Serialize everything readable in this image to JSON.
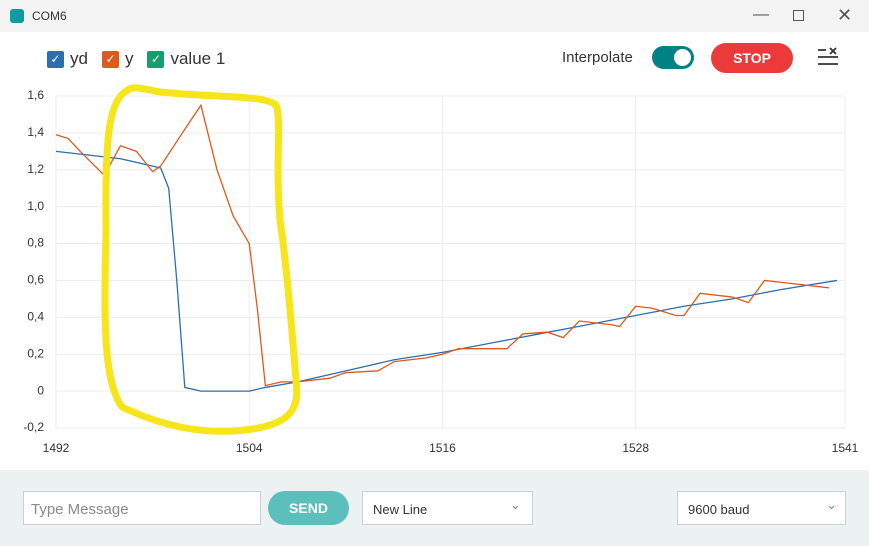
{
  "window": {
    "title": "COM6"
  },
  "toolbar": {
    "interpolate": "Interpolate",
    "stop": "STOP"
  },
  "footer": {
    "message_placeholder": "Type Message",
    "send": "SEND",
    "line_ending": "New Line",
    "baud": "9600 baud"
  },
  "chart_data": {
    "type": "line",
    "xlim": [
      1492,
      1541
    ],
    "xticks": [
      1492,
      1504,
      1516,
      1528,
      1541
    ],
    "ylim": [
      -0.2,
      1.6
    ],
    "yticks": [
      {
        "value": -0.2,
        "label": "-0,2"
      },
      0,
      {
        "value": 0.2,
        "label": "0,2"
      },
      {
        "value": 0.4,
        "label": "0,4"
      },
      {
        "value": 0.6,
        "label": "0,6"
      },
      {
        "value": 0.8,
        "label": "0,8"
      },
      {
        "value": 1.0,
        "label": "1,0"
      },
      {
        "value": 1.2,
        "label": "1,2"
      },
      {
        "value": 1.4,
        "label": "1,4"
      },
      {
        "value": 1.6,
        "label": "1,6"
      }
    ],
    "grid": true,
    "series": [
      {
        "name": "yd",
        "color": "#2a6fb0",
        "x": [
          1492,
          1494,
          1496,
          1497,
          1498,
          1498.5,
          1499,
          1499.5,
          1500,
          1501,
          1504,
          1505,
          1507,
          1510,
          1513,
          1516,
          1519,
          1522,
          1525,
          1528,
          1531,
          1534,
          1537,
          1540.5
        ],
        "values": [
          1.3,
          1.28,
          1.26,
          1.24,
          1.22,
          1.21,
          1.1,
          0.6,
          0.02,
          0,
          0,
          0.02,
          0.05,
          0.11,
          0.17,
          0.21,
          0.26,
          0.31,
          0.36,
          0.41,
          0.46,
          0.5,
          0.55,
          0.6
        ]
      },
      {
        "name": "y",
        "color": "#e0581c",
        "x": [
          1492,
          1492.75,
          1493.5,
          1495,
          1496,
          1497,
          1498,
          1498.5,
          1500,
          1501,
          1502,
          1503,
          1504,
          1504.5,
          1505,
          1506,
          1507,
          1509,
          1510,
          1512,
          1513,
          1515,
          1516,
          1517,
          1520,
          1521,
          1522.5,
          1523.5,
          1524.5,
          1526.5,
          1527,
          1528,
          1529,
          1530.5,
          1531,
          1532,
          1534,
          1535,
          1536,
          1537,
          1540
        ],
        "values": [
          1.39,
          1.37,
          1.3,
          1.17,
          1.33,
          1.3,
          1.19,
          1.22,
          1.42,
          1.55,
          1.2,
          0.95,
          0.8,
          0.45,
          0.03,
          0.05,
          0.05,
          0.07,
          0.1,
          0.11,
          0.16,
          0.18,
          0.2,
          0.23,
          0.23,
          0.31,
          0.32,
          0.29,
          0.38,
          0.36,
          0.35,
          0.46,
          0.45,
          0.41,
          0.41,
          0.53,
          0.51,
          0.48,
          0.6,
          0.59,
          0.56
        ]
      },
      {
        "name": "value 1",
        "color": "#14a06e",
        "x": [],
        "values": []
      }
    ]
  }
}
